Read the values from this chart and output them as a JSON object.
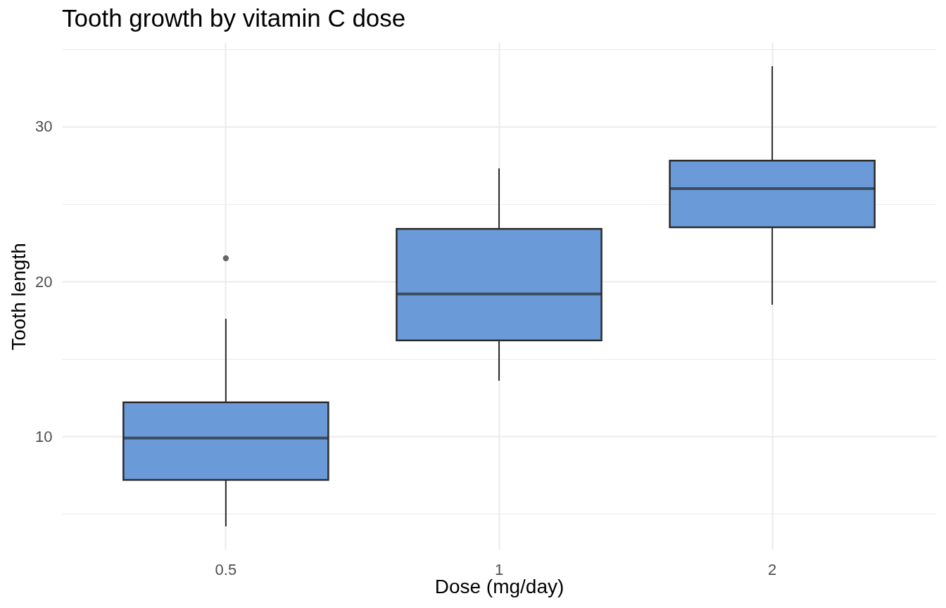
{
  "chart_data": {
    "type": "box",
    "title": "Tooth growth by vitamin C dose",
    "xlabel": "Dose (mg/day)",
    "ylabel": "Tooth length",
    "categories": [
      "0.5",
      "1",
      "2"
    ],
    "color": "#6a9bd8",
    "boxes": [
      {
        "low": 4.2,
        "q1": 7.2,
        "median": 9.9,
        "q3": 12.2,
        "high": 17.6,
        "outliers": [
          21.5
        ]
      },
      {
        "low": 13.6,
        "q1": 16.2,
        "median": 19.2,
        "q3": 23.4,
        "high": 27.3
      },
      {
        "low": 18.5,
        "q1": 23.5,
        "median": 26.0,
        "q3": 27.8,
        "high": 33.9
      }
    ],
    "ylim": [
      2.7,
      35.4
    ],
    "yticks": [
      {
        "value": 5,
        "label": null
      },
      10,
      {
        "value": 15,
        "label": null
      },
      20,
      {
        "value": 25,
        "label": null
      },
      30,
      {
        "value": 35,
        "label": null
      }
    ],
    "grid": true
  }
}
